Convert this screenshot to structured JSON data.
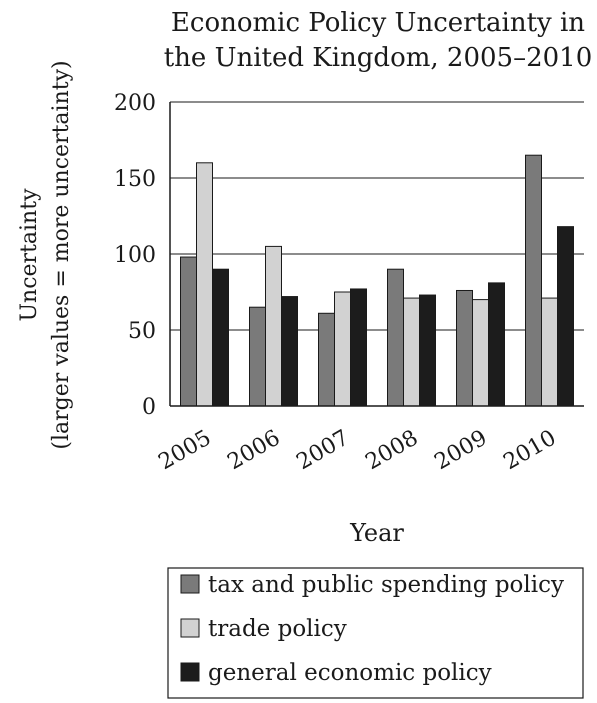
{
  "chart_data": {
    "type": "bar",
    "title_lines": [
      "Economic Policy Uncertainty in",
      "the United Kingdom, 2005–2010"
    ],
    "ylabel_lines": [
      "Uncertainty",
      "(larger values = more uncertainty)"
    ],
    "xlabel": "Year",
    "categories": [
      "2005",
      "2006",
      "2007",
      "2008",
      "2009",
      "2010"
    ],
    "ylim": [
      0,
      200
    ],
    "yticks": [
      "0",
      "50",
      "100",
      "150",
      "200"
    ],
    "grid": true,
    "legend_position": "bottom",
    "series": [
      {
        "name": "tax and  public spending policy",
        "color": "#7a7a7a",
        "values": [
          98,
          65,
          61,
          90,
          76,
          165
        ]
      },
      {
        "name": "trade policy",
        "color": "#d2d2d2",
        "values": [
          160,
          105,
          75,
          71,
          70,
          71
        ]
      },
      {
        "name": "general economic policy",
        "color": "#1c1c1c",
        "values": [
          90,
          72,
          77,
          73,
          81,
          118
        ]
      }
    ]
  }
}
